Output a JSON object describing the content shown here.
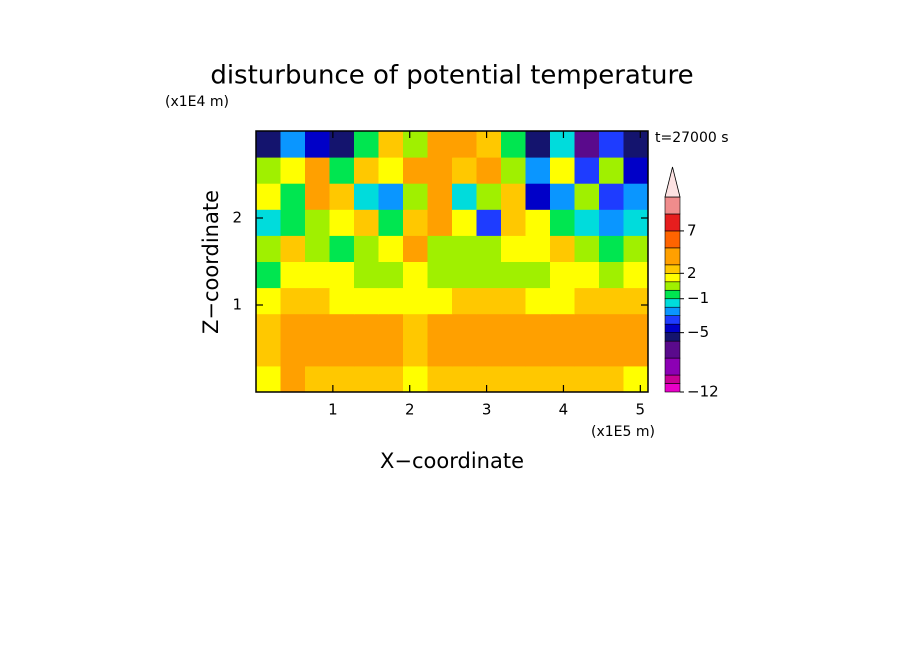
{
  "chart_data": {
    "type": "contour",
    "title": "disturbunce of potential temperature",
    "annotation": "t=27000 s",
    "x_label": "X−coordinate",
    "y_label": "Z−coordinate",
    "x_unit": "(x1E5 m)",
    "y_unit": "(x1E4 m)",
    "xlim": [
      0,
      5.1
    ],
    "ylim": [
      0,
      3
    ],
    "xticks": [
      1,
      2,
      3,
      4,
      5
    ],
    "yticks": [
      1,
      2
    ],
    "z": [
      [
        1,
        3,
        2,
        2,
        2,
        2,
        1,
        2,
        2,
        2,
        2,
        2,
        2,
        2,
        2,
        1
      ],
      [
        2,
        4,
        3,
        3,
        3,
        3,
        2,
        3,
        4,
        4,
        4,
        4,
        3,
        3,
        3,
        3
      ],
      [
        2,
        3,
        3,
        3,
        3,
        3,
        2,
        3,
        3,
        3,
        3,
        3,
        3,
        3,
        3,
        3
      ],
      [
        1,
        2,
        2,
        1,
        1,
        1,
        1,
        1,
        2,
        2,
        2,
        1,
        1,
        2,
        2,
        2
      ],
      [
        -1,
        1,
        1,
        1,
        0,
        0,
        1,
        0,
        0,
        0,
        0,
        0,
        1,
        1,
        0,
        1
      ],
      [
        0,
        2,
        0,
        -1,
        0,
        1,
        3,
        0,
        0,
        0,
        1,
        1,
        2,
        0,
        -1,
        0
      ],
      [
        -2,
        -1,
        0,
        1,
        2,
        -1,
        2,
        3,
        1,
        -4,
        2,
        1,
        -1,
        -2,
        -3,
        -2
      ],
      [
        1,
        -1,
        3,
        2,
        -2,
        -3,
        0,
        3,
        -2,
        0,
        2,
        -5,
        -3,
        0,
        -4,
        -3
      ],
      [
        0,
        1,
        4,
        -1,
        2,
        1,
        3,
        4,
        2,
        3,
        0,
        -3,
        1,
        -4,
        0,
        -5
      ],
      [
        -6,
        -3,
        -5,
        -6,
        -1,
        2,
        0,
        4,
        3,
        2,
        -1,
        -6,
        -2,
        -7,
        -4,
        -6
      ]
    ],
    "levels": [
      -12,
      -11,
      -10,
      -8,
      -6,
      -5,
      -4,
      -3,
      -2,
      -1,
      0,
      1,
      2,
      3,
      5,
      7,
      9,
      11
    ],
    "colors": [
      "#e800c8",
      "#c80096",
      "#8c00b4",
      "#5a0a8c",
      "#14146e",
      "#0000c8",
      "#1e3cff",
      "#0a96ff",
      "#00dcdc",
      "#00e650",
      "#a0f000",
      "#ffff00",
      "#ffc800",
      "#ffa000",
      "#ff6400",
      "#e61e1e",
      "#f08c8c"
    ],
    "extend_color": "#fde2e2",
    "clim": [
      -12,
      11
    ],
    "cbar_ticks": [
      {
        "value": -12,
        "label": "−12"
      },
      {
        "value": -5,
        "label": "−5"
      },
      {
        "value": -1,
        "label": "−1"
      },
      2,
      7
    ]
  }
}
